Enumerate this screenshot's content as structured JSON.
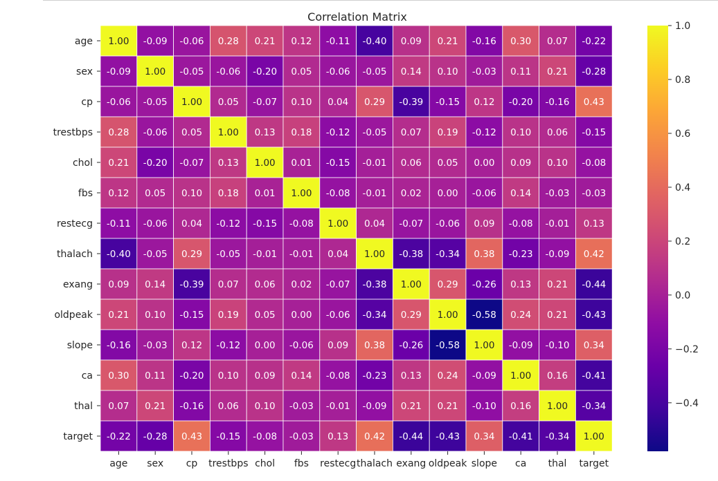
{
  "chart_data": {
    "type": "heatmap",
    "title": "Correlation Matrix",
    "xlabel": "",
    "ylabel": "",
    "colormap": "plasma",
    "vmin": -0.58,
    "vmax": 1.0,
    "annotated": true,
    "value_format": "0.00",
    "linecolor": "#ffffff",
    "labels": [
      "age",
      "sex",
      "cp",
      "trestbps",
      "chol",
      "fbs",
      "restecg",
      "thalach",
      "exang",
      "oldpeak",
      "slope",
      "ca",
      "thal",
      "target"
    ],
    "matrix": [
      [
        1.0,
        -0.09,
        -0.06,
        0.28,
        0.21,
        0.12,
        -0.11,
        -0.4,
        0.09,
        0.21,
        -0.16,
        0.3,
        0.07,
        -0.22
      ],
      [
        -0.09,
        1.0,
        -0.05,
        -0.06,
        -0.2,
        0.05,
        -0.06,
        -0.05,
        0.14,
        0.1,
        -0.03,
        0.11,
        0.21,
        -0.28
      ],
      [
        -0.06,
        -0.05,
        1.0,
        0.05,
        -0.07,
        0.1,
        0.04,
        0.29,
        -0.39,
        -0.15,
        0.12,
        -0.2,
        -0.16,
        0.43
      ],
      [
        0.28,
        -0.06,
        0.05,
        1.0,
        0.13,
        0.18,
        -0.12,
        -0.05,
        0.07,
        0.19,
        -0.12,
        0.1,
        0.06,
        -0.15
      ],
      [
        0.21,
        -0.2,
        -0.07,
        0.13,
        1.0,
        0.01,
        -0.15,
        -0.01,
        0.06,
        0.05,
        0.0,
        0.09,
        0.1,
        -0.08
      ],
      [
        0.12,
        0.05,
        0.1,
        0.18,
        0.01,
        1.0,
        -0.08,
        -0.01,
        0.02,
        0.0,
        -0.06,
        0.14,
        -0.03,
        -0.03
      ],
      [
        -0.11,
        -0.06,
        0.04,
        -0.12,
        -0.15,
        -0.08,
        1.0,
        0.04,
        -0.07,
        -0.06,
        0.09,
        -0.08,
        -0.01,
        0.13
      ],
      [
        -0.4,
        -0.05,
        0.29,
        -0.05,
        -0.01,
        -0.01,
        0.04,
        1.0,
        -0.38,
        -0.34,
        0.38,
        -0.23,
        -0.09,
        0.42
      ],
      [
        0.09,
        0.14,
        -0.39,
        0.07,
        0.06,
        0.02,
        -0.07,
        -0.38,
        1.0,
        0.29,
        -0.26,
        0.13,
        0.21,
        -0.44
      ],
      [
        0.21,
        0.1,
        -0.15,
        0.19,
        0.05,
        0.0,
        -0.06,
        -0.34,
        0.29,
        1.0,
        -0.58,
        0.24,
        0.21,
        -0.43
      ],
      [
        -0.16,
        -0.03,
        0.12,
        -0.12,
        0.0,
        -0.06,
        0.09,
        0.38,
        -0.26,
        -0.58,
        1.0,
        -0.09,
        -0.1,
        0.34
      ],
      [
        0.3,
        0.11,
        -0.2,
        0.1,
        0.09,
        0.14,
        -0.08,
        -0.23,
        0.13,
        0.24,
        -0.09,
        1.0,
        0.16,
        -0.41
      ],
      [
        0.07,
        0.21,
        -0.16,
        0.06,
        0.1,
        -0.03,
        -0.01,
        -0.09,
        0.21,
        0.21,
        -0.1,
        0.16,
        1.0,
        -0.34
      ],
      [
        -0.22,
        -0.28,
        0.43,
        -0.15,
        -0.08,
        -0.03,
        0.13,
        0.42,
        -0.44,
        -0.43,
        0.34,
        -0.41,
        -0.34,
        1.0
      ]
    ],
    "colorbar": {
      "ticks": [
        1.0,
        0.8,
        0.6,
        0.4,
        0.2,
        0.0,
        -0.2,
        -0.4
      ],
      "tick_labels": [
        "1.0",
        "0.8",
        "0.6",
        "0.4",
        "0.2",
        "0.0",
        "−0.2",
        "−0.4"
      ]
    },
    "dark_text_color": "#262626",
    "light_text_color": "#ffffff"
  }
}
